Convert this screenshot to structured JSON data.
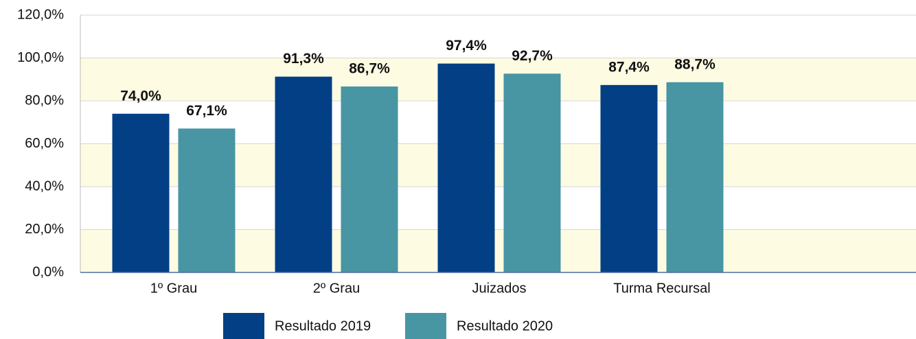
{
  "chart_data": {
    "type": "bar",
    "categories": [
      "1º Grau",
      "2º Grau",
      "Juizados",
      "Turma Recursal"
    ],
    "series": [
      {
        "name": "Resultado 2019",
        "color": "#033f85",
        "values": [
          74.0,
          91.3,
          97.4,
          87.4
        ],
        "value_labels": [
          "74,0%",
          "91,3%",
          "97,4%",
          "87,4%"
        ]
      },
      {
        "name": "Resultado 2020",
        "color": "#4895a3",
        "values": [
          67.1,
          86.7,
          92.7,
          88.7
        ],
        "value_labels": [
          "67,1%",
          "86,7%",
          "92,7%",
          "88,7%"
        ]
      }
    ],
    "ylim": [
      0,
      120
    ],
    "yticks": [
      {
        "value": 0,
        "label": "0,0%"
      },
      {
        "value": 20,
        "label": "20,0%"
      },
      {
        "value": 40,
        "label": "40,0%"
      },
      {
        "value": 60,
        "label": "60,0%"
      },
      {
        "value": 80,
        "label": "80,0%"
      },
      {
        "value": 100,
        "label": "100,0%"
      },
      {
        "value": 120,
        "label": "120,0%"
      }
    ],
    "grid": true,
    "legend": "bottom"
  }
}
